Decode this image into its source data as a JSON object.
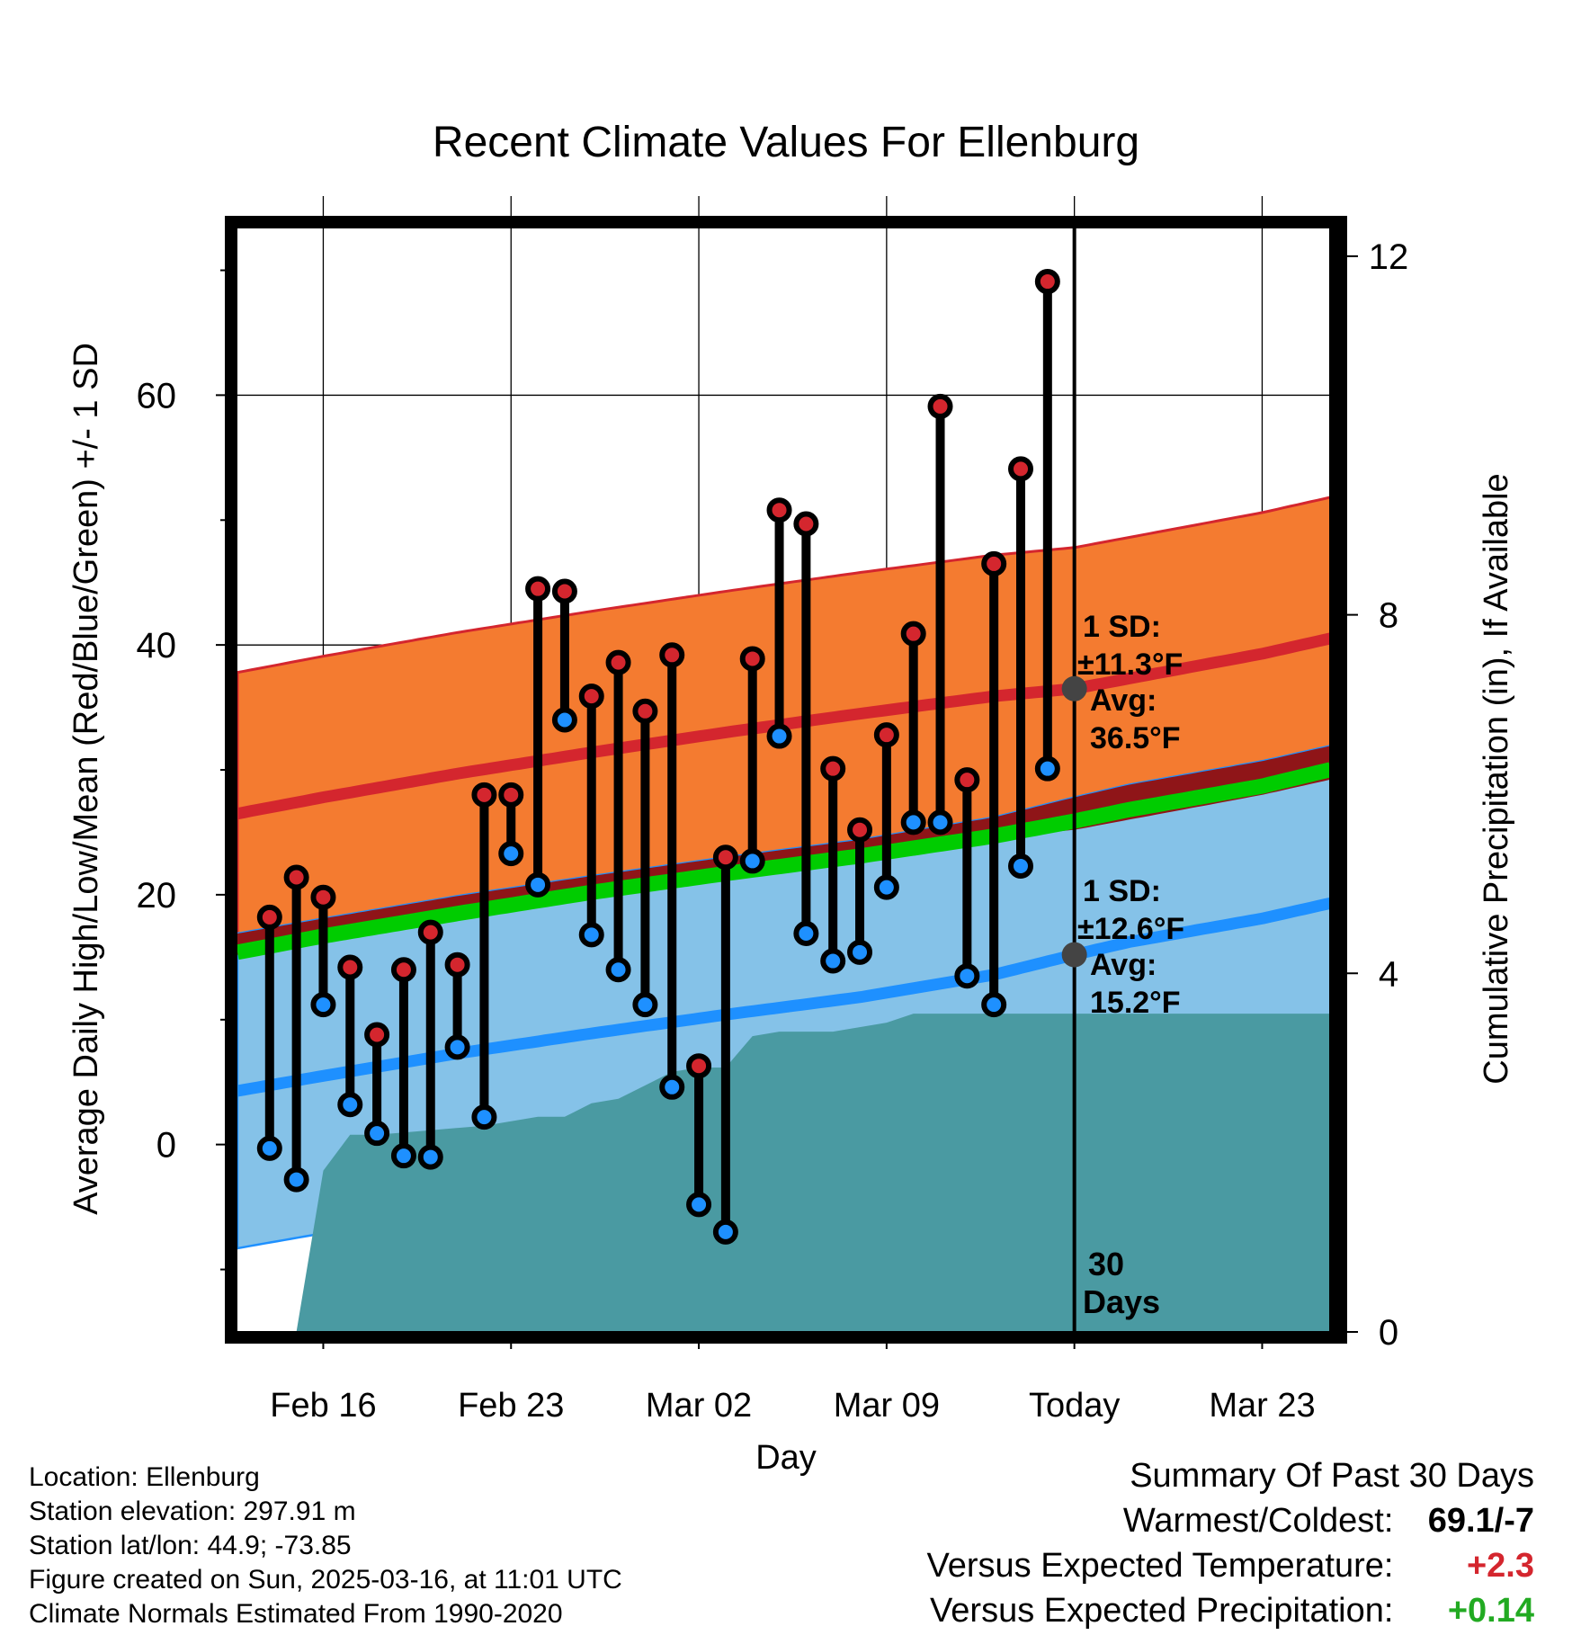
{
  "chart_data": {
    "type": "line",
    "title": "Recent Climate Values For Ellenburg",
    "xlabel": "Day",
    "ylabel_left": "Average Daily High/Low/Mean (Red/Blue/Green) +/- 1 SD",
    "ylabel_right": "Cumulative Precipitation (in), If Available",
    "x_ticks": [
      {
        "day": 0,
        "label": "Feb 16"
      },
      {
        "day": 7,
        "label": "Feb 23"
      },
      {
        "day": 14,
        "label": "Mar 02"
      },
      {
        "day": 21,
        "label": "Mar 09"
      },
      {
        "day": 28,
        "label": "Today"
      },
      {
        "day": 35,
        "label": "Mar 23"
      }
    ],
    "xlim": [
      -3.2,
      37.7
    ],
    "ylim_temp": [
      -15,
      74
    ],
    "yticks_temp": [
      0,
      20,
      40,
      60
    ],
    "ylim_precip": [
      0,
      12.4
    ],
    "yticks_precip": [
      0,
      4,
      8,
      12
    ],
    "grid": true,
    "days": [
      -2,
      -1,
      0,
      1,
      2,
      3,
      4,
      5,
      6,
      7,
      8,
      9,
      10,
      11,
      12,
      13,
      14,
      15,
      16,
      17,
      18,
      19,
      20,
      21,
      22,
      23,
      24,
      25,
      26,
      27
    ],
    "highs": [
      18.2,
      21.4,
      19.8,
      14.2,
      8.8,
      14.0,
      17.0,
      14.4,
      28.0,
      28.0,
      44.5,
      44.3,
      35.9,
      38.6,
      34.7,
      39.2,
      6.3,
      23.0,
      38.9,
      50.8,
      49.7,
      30.1,
      25.2,
      32.8,
      40.9,
      59.1,
      29.2,
      46.5,
      54.1,
      69.1
    ],
    "lows": [
      -0.3,
      -2.8,
      11.2,
      3.2,
      0.9,
      -0.9,
      -1.0,
      7.8,
      2.2,
      23.3,
      20.8,
      34.0,
      16.8,
      14.0,
      11.2,
      4.6,
      -4.8,
      -7.0,
      22.7,
      32.7,
      16.9,
      14.7,
      15.4,
      20.6,
      25.8,
      25.8,
      13.5,
      11.2,
      22.3,
      30.1
    ],
    "normal_high": {
      "day": [
        -3.2,
        0,
        5,
        10,
        15,
        20,
        25,
        28,
        30,
        35,
        37.7
      ],
      "values": [
        26.5,
        27.8,
        29.7,
        31.4,
        33.0,
        34.5,
        35.9,
        36.5,
        37.3,
        39.3,
        40.6
      ]
    },
    "normal_high_sd": 11.3,
    "normal_low": {
      "day": [
        -3.2,
        0,
        5,
        10,
        15,
        20,
        25,
        28,
        30,
        35,
        37.7
      ],
      "values": [
        4.3,
        5.5,
        7.3,
        8.9,
        10.4,
        11.8,
        13.6,
        15.2,
        16.2,
        18.1,
        19.4
      ]
    },
    "normal_low_sd": 12.6,
    "normal_mean": {
      "day": [
        -3.2,
        0,
        5,
        10,
        15,
        20,
        25,
        28,
        30,
        35,
        37.7
      ],
      "values": [
        15.4,
        16.7,
        18.5,
        20.2,
        21.7,
        23.1,
        24.7,
        25.9,
        26.8,
        28.7,
        30.1
      ]
    },
    "precip": {
      "day": [
        -3.2,
        -2.2,
        -1.0,
        0,
        1,
        2,
        4,
        6,
        7,
        8,
        9,
        10,
        11,
        12,
        13,
        14,
        15,
        16,
        17,
        18,
        19,
        20,
        21,
        22,
        28,
        37.7
      ],
      "values": [
        0,
        0,
        0,
        1.8,
        2.2,
        2.2,
        2.25,
        2.3,
        2.35,
        2.4,
        2.4,
        2.55,
        2.6,
        2.75,
        2.9,
        2.95,
        2.95,
        3.3,
        3.35,
        3.35,
        3.35,
        3.4,
        3.45,
        3.55,
        3.55,
        3.55
      ]
    },
    "today_annotations": {
      "high_sd_label": "1 SD:",
      "high_sd_value": "±11.3°F",
      "high_avg_label": "Avg:",
      "high_avg_value": "36.5°F",
      "low_sd_label": "1 SD:",
      "low_sd_value": "±12.6°F",
      "low_avg_label": "Avg:",
      "low_avg_value": "15.2°F",
      "window_number": "30",
      "window_unit": "Days"
    },
    "colors": {
      "high_band": "#f47b30",
      "high_line": "#d4262e",
      "overlap_band": "#8f1518",
      "low_band": "#85c2e8",
      "low_line": "#1e90ff",
      "mean_line": "#00cc00",
      "precip_fill": "#4a9aa2",
      "high_marker": "#d4262e",
      "low_marker": "#1e90ff",
      "annotation_text": "#4d4d4d",
      "today_dot": "#444444"
    }
  },
  "footer": {
    "location": "Location: Ellenburg",
    "elevation": "Station elevation: 297.91 m",
    "latlon": "Station lat/lon: 44.9; -73.85",
    "created": "Figure created on Sun, 2025-03-16, at 11:01 UTC",
    "normals": "Climate Normals Estimated From 1990-2020"
  },
  "summary": {
    "title": "Summary Of Past 30 Days",
    "warmest_coldest_label": "Warmest/Coldest:",
    "warmest_coldest_value": "69.1/-7",
    "temp_label": "Versus Expected Temperature:",
    "temp_value": "+2.3",
    "temp_color": "#d4262e",
    "precip_label": "Versus Expected Precipitation:",
    "precip_value": "+0.14",
    "precip_color": "#22aa22"
  }
}
